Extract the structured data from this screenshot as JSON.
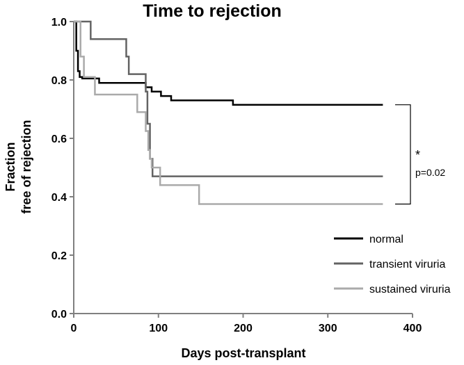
{
  "chart_data": {
    "type": "line",
    "title": "Time to rejection",
    "xlabel": "Days post-transplant",
    "ylabel_lines": [
      "Fraction",
      "free of rejection"
    ],
    "xlim": [
      0,
      400
    ],
    "ylim": [
      0,
      1.0
    ],
    "x_ticks": [
      0,
      100,
      200,
      300,
      400
    ],
    "x_tick_labels": [
      "0",
      "100",
      "200",
      "300",
      "400"
    ],
    "y_ticks": [
      0,
      0.2,
      0.4,
      0.6,
      0.8,
      1.0
    ],
    "y_tick_labels": [
      "0.0",
      "0.2",
      "0.4",
      "0.6",
      "0.8",
      "1.0"
    ],
    "grid": false,
    "legend_position": "bottom-right",
    "series": [
      {
        "name": "normal",
        "color": "#000000",
        "x": [
          0,
          3,
          5,
          7,
          10,
          30,
          85,
          92,
          103,
          115,
          188,
          365
        ],
        "y": [
          1.0,
          0.9,
          0.83,
          0.81,
          0.805,
          0.79,
          0.775,
          0.76,
          0.745,
          0.73,
          0.715,
          0.715
        ]
      },
      {
        "name": "transient viruria",
        "color": "#636363",
        "x": [
          0,
          20,
          62,
          65,
          85,
          87,
          90,
          93,
          365
        ],
        "y": [
          1.0,
          0.94,
          0.88,
          0.82,
          0.76,
          0.65,
          0.53,
          0.47,
          0.47
        ]
      },
      {
        "name": "sustained viruria",
        "color": "#aaaaaa",
        "x": [
          0,
          8,
          12,
          25,
          75,
          85,
          88,
          90,
          92,
          98,
          102,
          148,
          365
        ],
        "y": [
          1.0,
          0.88,
          0.81,
          0.75,
          0.69,
          0.625,
          0.56,
          0.53,
          0.5,
          0.5,
          0.44,
          0.375,
          0.375
        ]
      }
    ],
    "annotations": {
      "significance_marker": "*",
      "p_value_text": "p=0.02",
      "bracket_between": [
        "normal",
        "sustained viruria"
      ]
    }
  }
}
